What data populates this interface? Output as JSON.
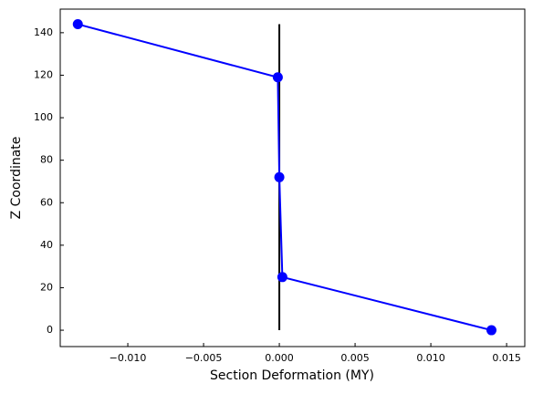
{
  "chart_data": {
    "type": "line",
    "xlabel": "Section Deformation (MY)",
    "ylabel": "Z Coordinate",
    "series": [
      {
        "color": "#000000",
        "x": [
          0,
          0
        ],
        "values": [
          0,
          144
        ],
        "markers": false
      },
      {
        "color": "#0000ff",
        "x": [
          0.014,
          0.0002,
          0,
          -0.0001,
          -0.0133
        ],
        "values": [
          0,
          25,
          72,
          119,
          144
        ],
        "markers": true
      }
    ],
    "xlim": [
      -0.01446,
      0.0162
    ],
    "ylim": [
      -7.7,
      151.1
    ],
    "xticks": [
      {
        "value": -0.01,
        "label": "−0.010"
      },
      {
        "value": -0.005,
        "label": "−0.005"
      },
      {
        "value": 0,
        "label": "0.000"
      },
      {
        "value": 0.005,
        "label": "0.005"
      },
      {
        "value": 0.01,
        "label": "0.010"
      },
      {
        "value": 0.015,
        "label": "0.015"
      }
    ],
    "yticks": [
      0,
      20,
      40,
      60,
      80,
      100,
      120,
      140
    ],
    "grid": false
  }
}
